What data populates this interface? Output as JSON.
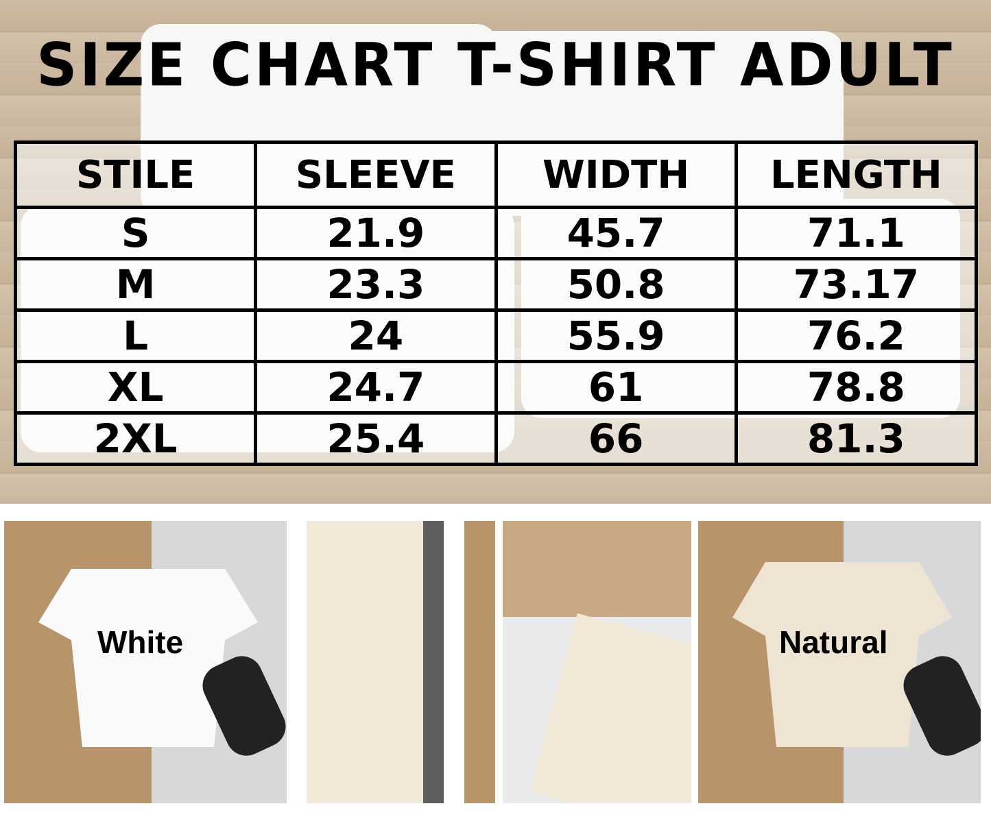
{
  "title": "SIZE CHART T-SHIRT ADULT",
  "table": {
    "headers": [
      "STILE",
      "SLEEVE",
      "WIDTH",
      "LENGTH"
    ],
    "rows": [
      [
        "S",
        "21.9",
        "45.7",
        "71.1"
      ],
      [
        "M",
        "23.3",
        "50.8",
        "73.17"
      ],
      [
        "L",
        "24",
        "55.9",
        "76.2"
      ],
      [
        "XL",
        "24.7",
        "61",
        "78.8"
      ],
      [
        "2XL",
        "25.4",
        "66",
        "81.3"
      ]
    ]
  },
  "photos": [
    {
      "label": "White",
      "shirt_color": "#ffffff"
    },
    {
      "label": "",
      "shirt_color": "#f1e6d6"
    },
    {
      "label": "",
      "shirt_color": "#f1e6d6"
    },
    {
      "label": "Natural",
      "shirt_color": "#eee3d2"
    }
  ]
}
